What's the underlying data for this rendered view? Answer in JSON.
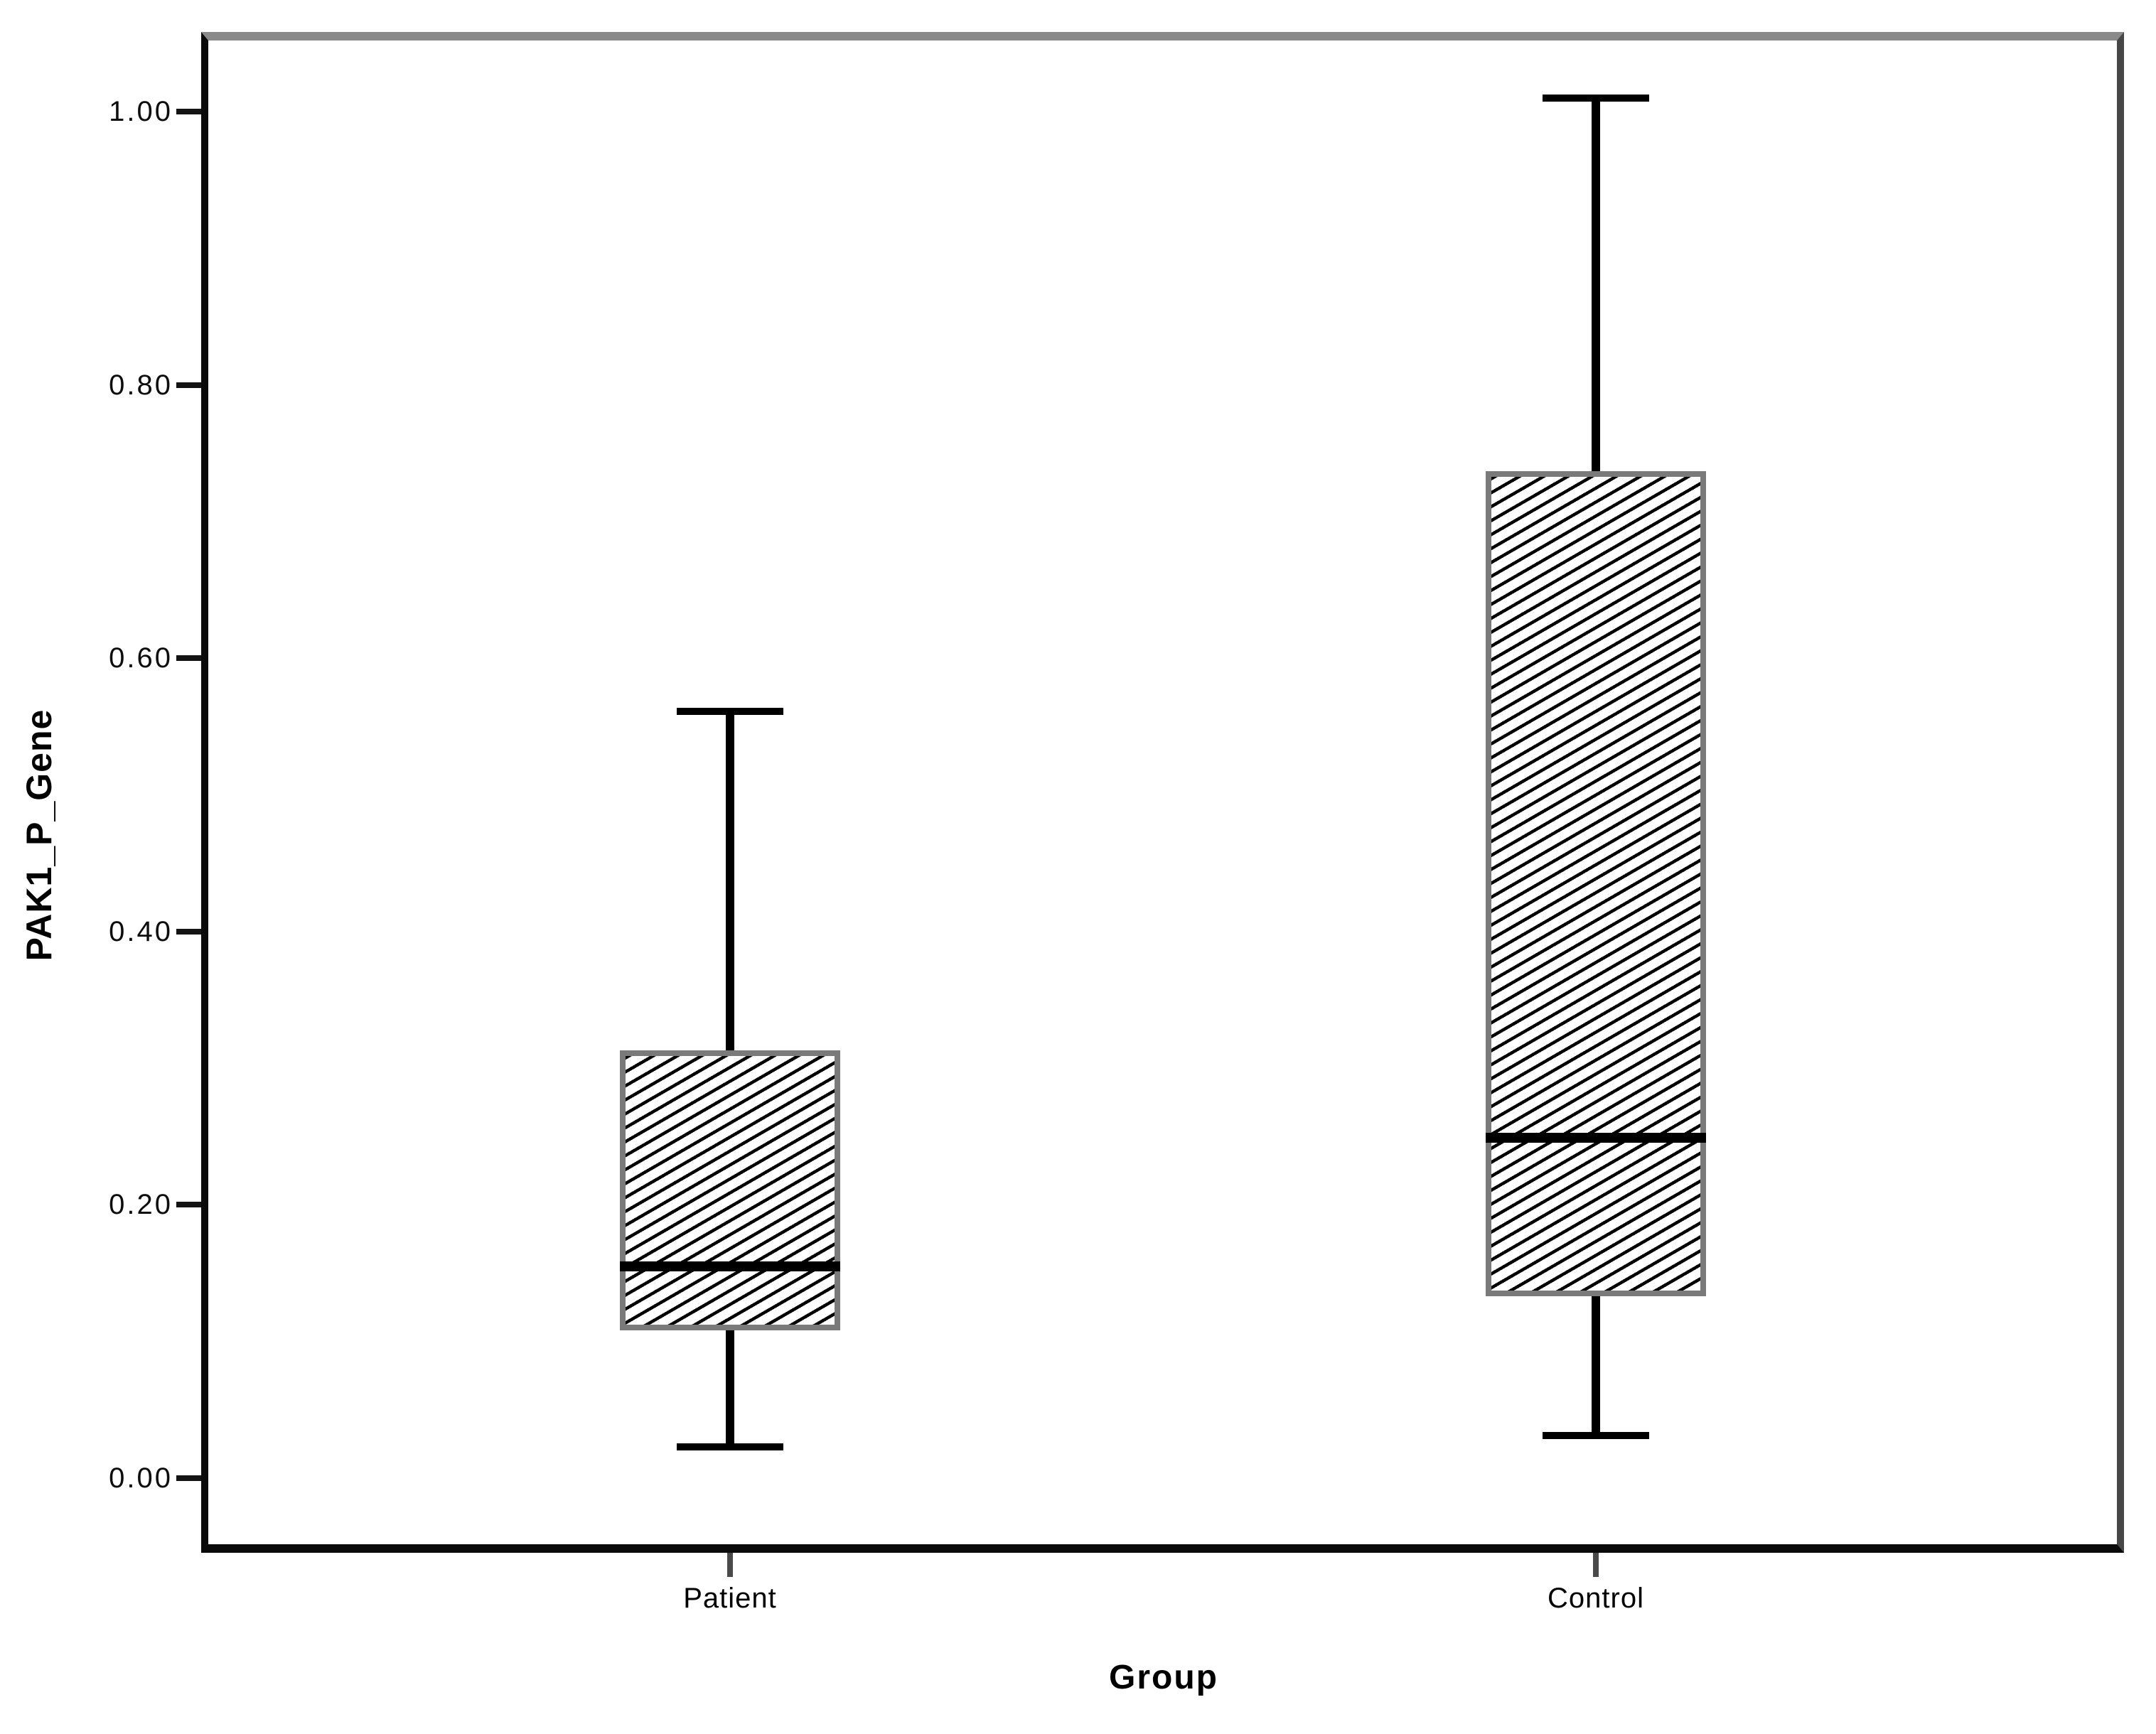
{
  "figure": {
    "xlabel": "Group",
    "ylabel": "PAK1_P_Gene"
  },
  "colors": {
    "frame_top_border": "#8a8a8a",
    "frame_axis": "#0a0a0a",
    "box_border": "#7a7a7a",
    "box_fill": "#ffffff",
    "hatch": "#000000",
    "median": "#000000",
    "whisker": "#000000",
    "tick_text": "#0d0d0d"
  },
  "chart_data": {
    "type": "box",
    "title": "",
    "xlabel": "Group",
    "ylabel": "PAK1_P_Gene",
    "categories": [
      "Patient",
      "Control"
    ],
    "y_ticks": [
      0.0,
      0.2,
      0.4,
      0.6,
      0.8,
      1.0
    ],
    "y_tick_labels": [
      "0.00",
      "0.20",
      "0.40",
      "0.60",
      "0.80",
      "1.00"
    ],
    "ylim": [
      -0.055,
      1.058
    ],
    "grid": false,
    "legend": "none",
    "box_style": {
      "hatch": "diagonal-forward-30deg",
      "fill": "#ffffff",
      "hatch_color": "#000000",
      "border_color": "#7a7a7a",
      "median_color": "#000000",
      "whisker_color": "#000000"
    },
    "boxes": [
      {
        "category": "Patient",
        "whisker_low": 0.023,
        "q1": 0.108,
        "median": 0.155,
        "q3": 0.313,
        "whisker_high": 0.561,
        "outliers": []
      },
      {
        "category": "Control",
        "whisker_low": 0.031,
        "q1": 0.133,
        "median": 0.249,
        "q3": 0.737,
        "whisker_high": 1.01,
        "outliers": []
      }
    ]
  }
}
